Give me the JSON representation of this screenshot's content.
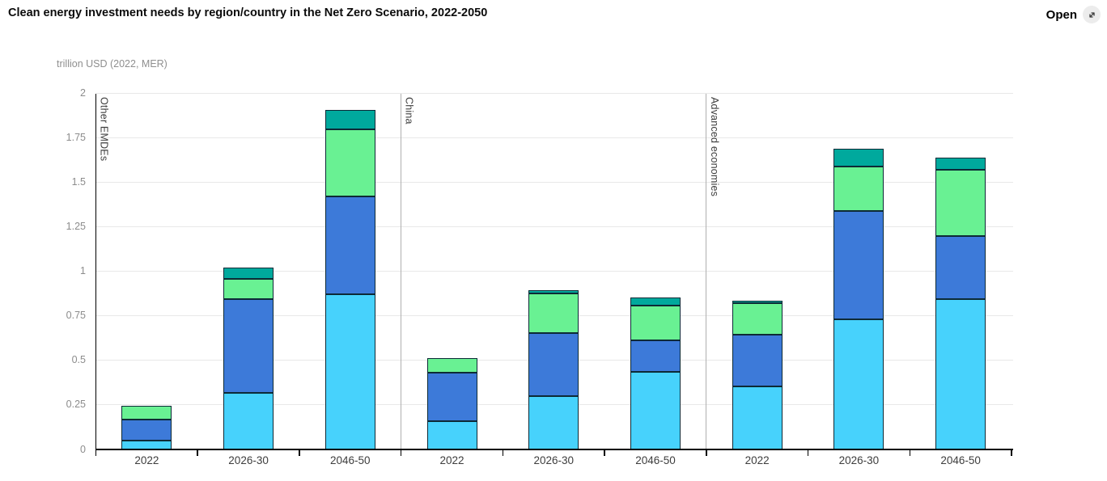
{
  "header": {
    "title": "Clean energy investment needs by region/country in the Net Zero Scenario, 2022-2050",
    "open_label": "Open"
  },
  "chart_data": {
    "type": "bar",
    "stacked": true,
    "title": "Clean energy investment needs by region/country in the Net Zero Scenario, 2022-2050",
    "unit_label": "trillion USD (2022, MER)",
    "legend": "none",
    "grid": true,
    "y_axis": {
      "min": 0,
      "max": 2,
      "tick_step": 0.25,
      "tick_labels": [
        "0",
        "0.25",
        "0.5",
        "0.75",
        "1",
        "1.25",
        "1.5",
        "1.75",
        "2"
      ]
    },
    "segment_color_names": [
      "light-blue",
      "blue",
      "light-green",
      "teal"
    ],
    "segment_colors": [
      "#47D2FC",
      "#3D7AD9",
      "#69F193",
      "#00A99D"
    ],
    "segment_border_color": "#0d2a36",
    "groups": [
      {
        "label": "Other EMDEs",
        "bars": [
          {
            "category": "2022",
            "segments": [
              0.05,
              0.12,
              0.075,
              0
            ],
            "total": 0.245
          },
          {
            "category": "2026-30",
            "segments": [
              0.32,
              0.525,
              0.115,
              0.06
            ],
            "total": 1.02
          },
          {
            "category": "2046-50",
            "segments": [
              0.87,
              0.55,
              0.38,
              0.105
            ],
            "total": 1.905
          }
        ]
      },
      {
        "label": "China",
        "bars": [
          {
            "category": "2022",
            "segments": [
              0.16,
              0.27,
              0.085,
              0
            ],
            "total": 0.515
          },
          {
            "category": "2026-30",
            "segments": [
              0.3,
              0.355,
              0.22,
              0.02
            ],
            "total": 0.895
          },
          {
            "category": "2046-50",
            "segments": [
              0.435,
              0.18,
              0.195,
              0.045
            ],
            "total": 0.855
          }
        ]
      },
      {
        "label": "Advanced economies",
        "bars": [
          {
            "category": "2022",
            "segments": [
              0.355,
              0.29,
              0.175,
              0.015
            ],
            "total": 0.835
          },
          {
            "category": "2026-30",
            "segments": [
              0.73,
              0.61,
              0.25,
              0.1
            ],
            "total": 1.69
          },
          {
            "category": "2046-50",
            "segments": [
              0.845,
              0.355,
              0.37,
              0.07
            ],
            "total": 1.64
          }
        ]
      }
    ]
  }
}
